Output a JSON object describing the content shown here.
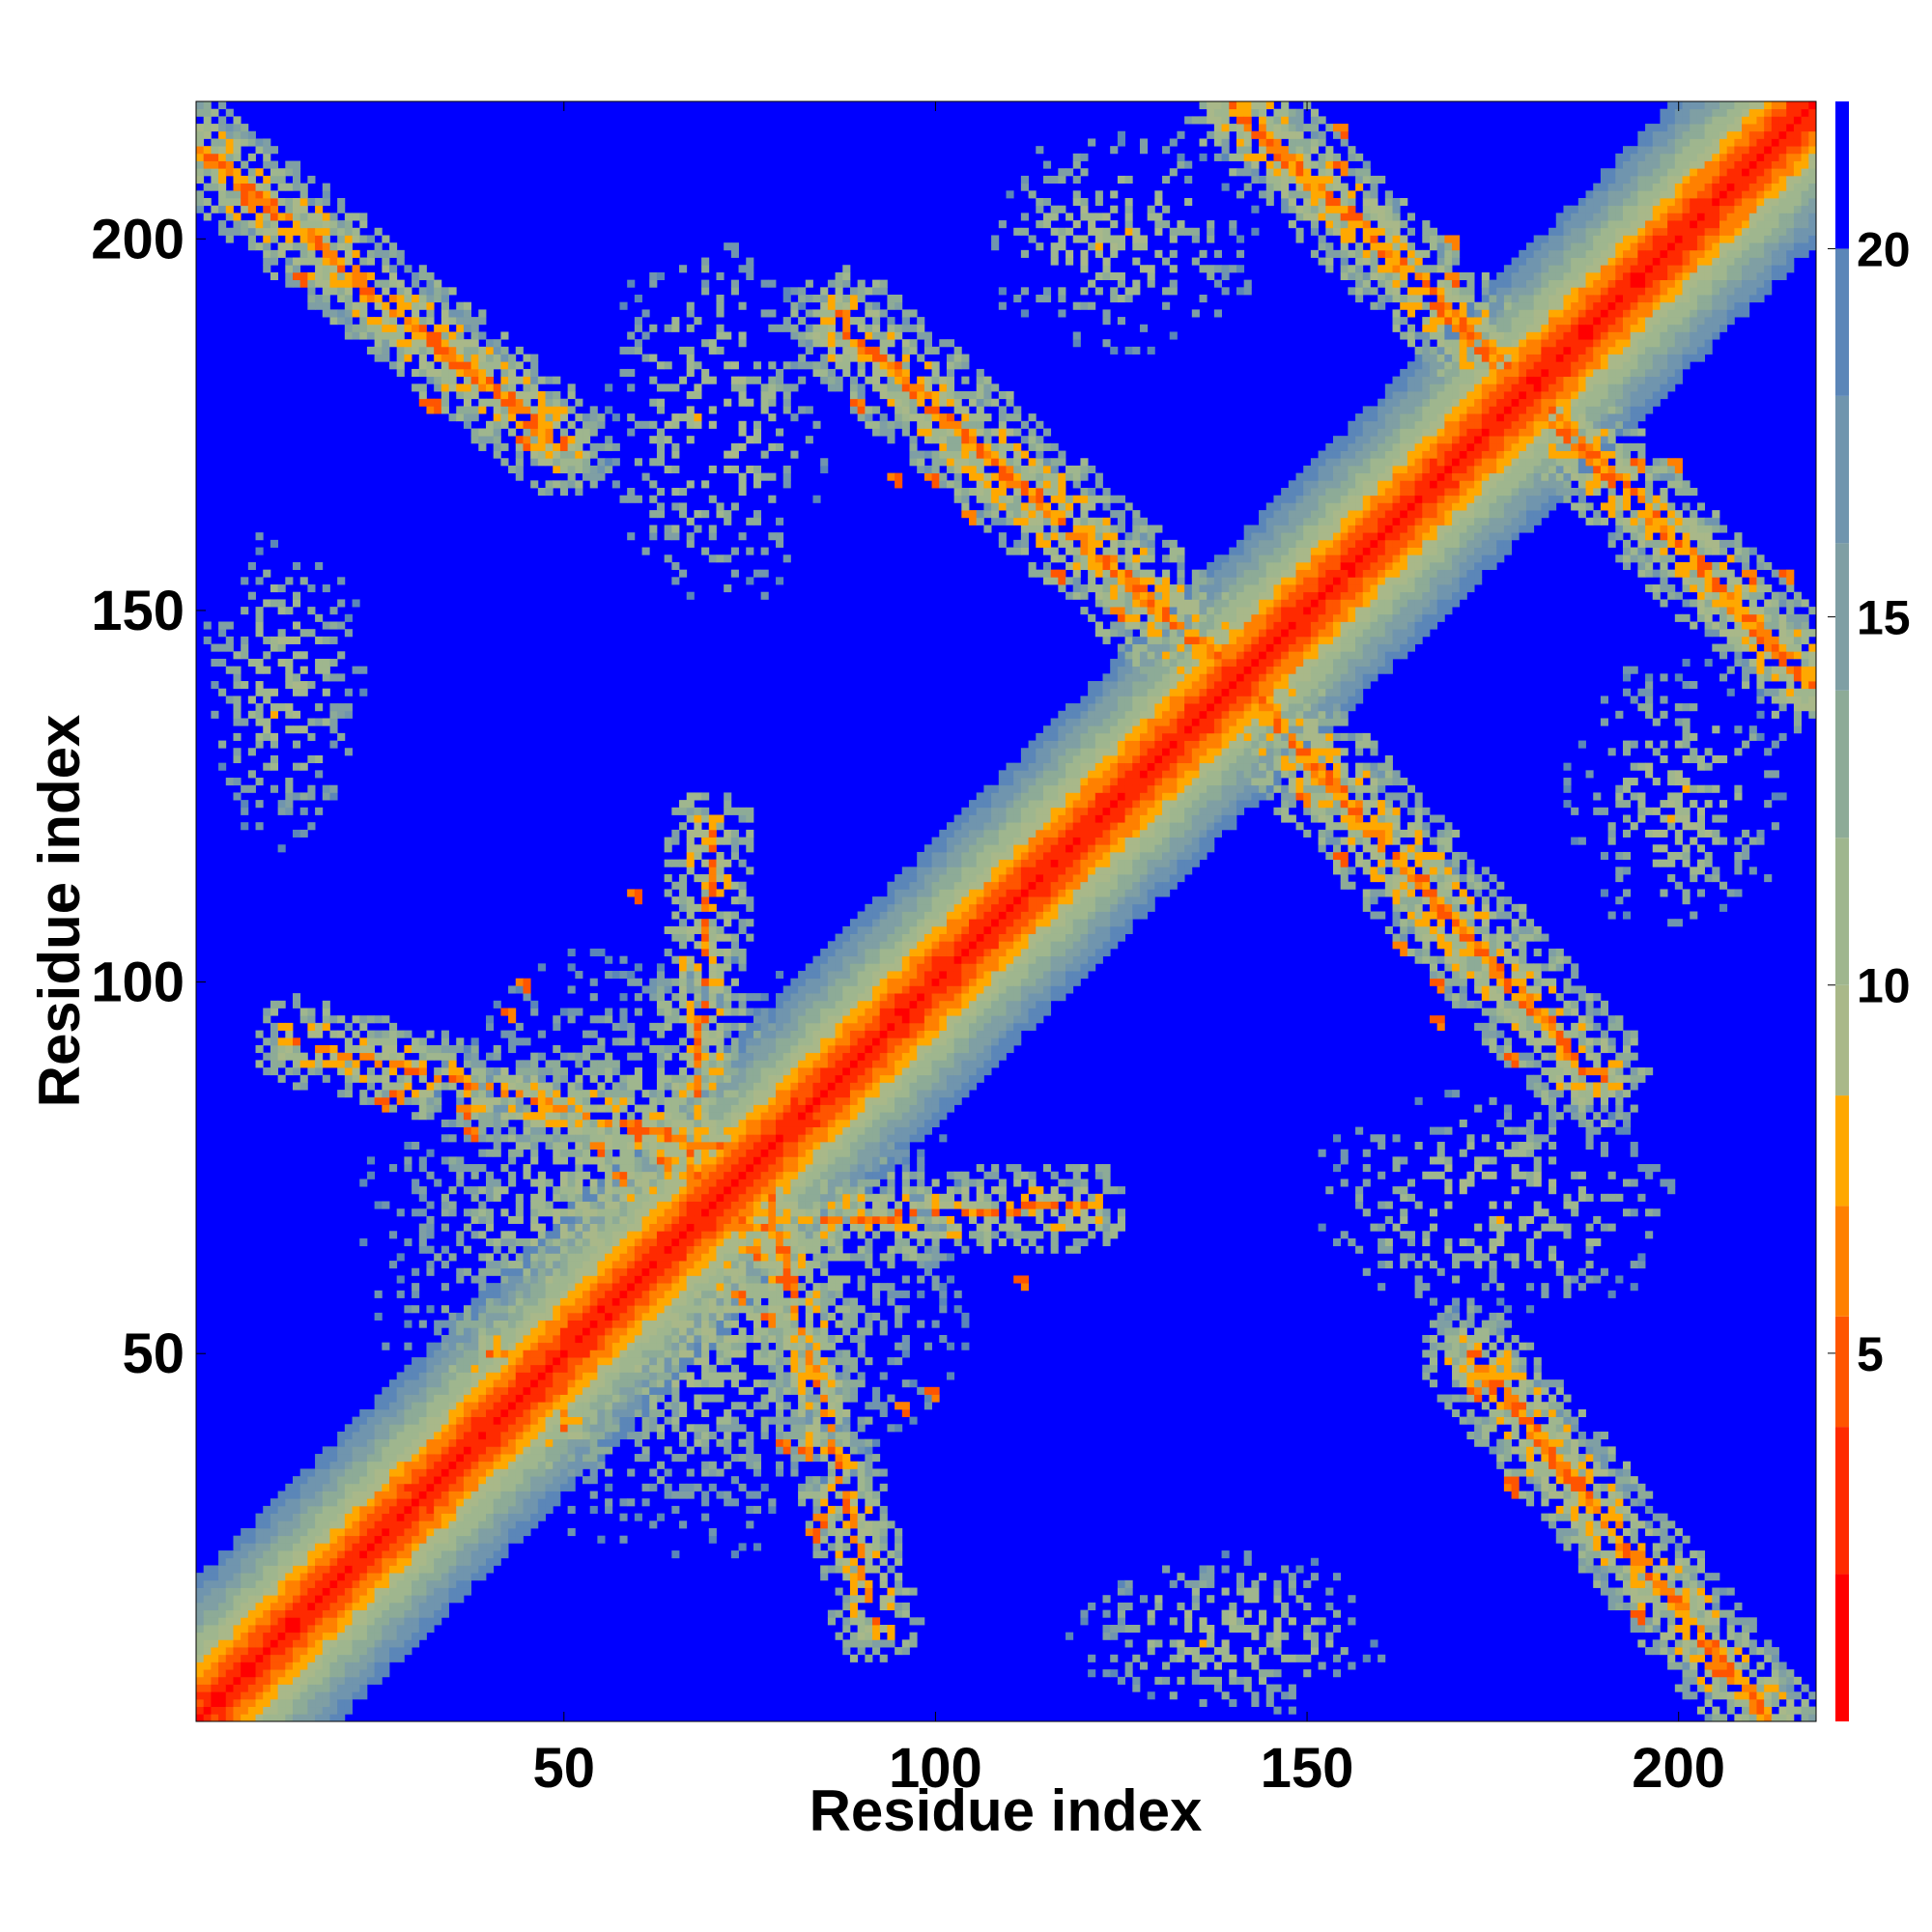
{
  "chart_data": {
    "type": "heatmap",
    "title": "",
    "xlabel": "Residue index",
    "ylabel": "Residue index",
    "xlim": [
      1,
      218
    ],
    "ylim": [
      1,
      218
    ],
    "x_ticks": [
      50,
      100,
      150,
      200
    ],
    "y_ticks": [
      50,
      100,
      150,
      200
    ],
    "grid": false,
    "colorbar": {
      "ticks": [
        5,
        10,
        15,
        20
      ],
      "range": [
        0,
        22
      ],
      "levels": [
        {
          "upper": 2,
          "color": "#ff0000"
        },
        {
          "upper": 4,
          "color": "#ff2a00"
        },
        {
          "upper": 5.5,
          "color": "#ff5500"
        },
        {
          "upper": 7,
          "color": "#ff8000"
        },
        {
          "upper": 8.5,
          "color": "#ffa800"
        },
        {
          "upper": 10,
          "color": "#a9b889"
        },
        {
          "upper": 12,
          "color": "#9fb68e"
        },
        {
          "upper": 14,
          "color": "#8dab97"
        },
        {
          "upper": 16,
          "color": "#7f9fa4"
        },
        {
          "upper": 18,
          "color": "#7095ae"
        },
        {
          "upper": 20,
          "color": "#5b86b8"
        },
        {
          "upper": 22,
          "color": "#0000ff"
        }
      ]
    },
    "background_color": "#0000ff",
    "contact_bands": [
      {
        "name": "main-diagonal",
        "x0": 1,
        "y0": 1,
        "x1": 218,
        "y1": 218,
        "core": 6.5,
        "mid": 11,
        "outer": 15,
        "dense": 1
      },
      {
        "name": "anti-diagonal-upper",
        "x0": 1,
        "y0": 212,
        "x1": 50,
        "y1": 172,
        "core": 1,
        "mid": 4,
        "outer": 7,
        "dense": 0.55
      },
      {
        "name": "anti-diagonal-center",
        "x0": 88,
        "y0": 188,
        "x1": 205,
        "y1": 83,
        "core": 1,
        "mid": 4.5,
        "outer": 8,
        "dense": 0.55
      },
      {
        "name": "anti-diagonal-top-right",
        "x0": 140,
        "y0": 218,
        "x1": 218,
        "y1": 143,
        "core": 1,
        "mid": 4,
        "outer": 7,
        "dense": 0.55
      },
      {
        "name": "anti-diagonal-bottom-right",
        "x0": 162,
        "y0": 48,
        "x1": 214,
        "y1": 1,
        "core": 1,
        "mid": 4,
        "outer": 7,
        "dense": 0.55
      },
      {
        "name": "cross-band-a",
        "x0": 14,
        "y0": 92,
        "x1": 110,
        "y1": 68,
        "core": 0.5,
        "mid": 3,
        "outer": 6,
        "dense": 0.45
      },
      {
        "name": "cross-band-b",
        "x0": 70,
        "y0": 120,
        "x1": 64,
        "y1": 20,
        "core": 0.5,
        "mid": 3,
        "outer": 6,
        "dense": 0.4
      },
      {
        "name": "cross-band-c",
        "x0": 40,
        "y0": 50,
        "x1": 100,
        "y1": 46,
        "core": 0.5,
        "mid": 3,
        "outer": 6,
        "dense": 0.4
      }
    ],
    "contact_blobs": [
      {
        "name": "cluster-low-left",
        "cx": 62,
        "cy": 66,
        "rx": 40,
        "ry": 40,
        "dense": 0.5
      },
      {
        "name": "cluster-top-mid",
        "cx": 70,
        "cy": 175,
        "rx": 16,
        "ry": 28,
        "dense": 0.3
      },
      {
        "name": "cluster-left-mid",
        "cx": 12,
        "cy": 140,
        "rx": 12,
        "ry": 22,
        "dense": 0.35
      },
      {
        "name": "cluster-top-sparse",
        "cx": 125,
        "cy": 200,
        "rx": 20,
        "ry": 16,
        "dense": 0.3
      },
      {
        "name": "cluster-right-upper",
        "cx": 205,
        "cy": 110,
        "rx": 16,
        "ry": 22,
        "dense": 0.35
      },
      {
        "name": "cluster-right-low",
        "cx": 180,
        "cy": 62,
        "rx": 20,
        "ry": 12,
        "dense": 0.3
      },
      {
        "name": "cluster-bottom-mid",
        "cx": 135,
        "cy": 10,
        "rx": 26,
        "ry": 10,
        "dense": 0.3
      },
      {
        "name": "cluster-bottom-left",
        "cx": 60,
        "cy": 15,
        "rx": 6,
        "ry": 10,
        "dense": 0.3
      }
    ],
    "hot_spots": [
      {
        "x": 72,
        "y": 70
      },
      {
        "x": 68,
        "y": 74
      },
      {
        "x": 76,
        "y": 64
      },
      {
        "x": 58,
        "y": 74
      },
      {
        "x": 55,
        "y": 78
      },
      {
        "x": 80,
        "y": 60
      },
      {
        "x": 74,
        "y": 58
      },
      {
        "x": 26,
        "y": 84
      },
      {
        "x": 38,
        "y": 80
      },
      {
        "x": 45,
        "y": 100
      },
      {
        "x": 60,
        "y": 112
      },
      {
        "x": 83,
        "y": 37
      },
      {
        "x": 85,
        "y": 28
      },
      {
        "x": 96,
        "y": 43
      },
      {
        "x": 33,
        "y": 178
      },
      {
        "x": 45,
        "y": 173
      },
      {
        "x": 95,
        "y": 168
      },
      {
        "x": 105,
        "y": 163
      },
      {
        "x": 125,
        "y": 150
      },
      {
        "x": 133,
        "y": 138
      },
      {
        "x": 155,
        "y": 117
      },
      {
        "x": 168,
        "y": 100
      },
      {
        "x": 178,
        "y": 90
      },
      {
        "x": 190,
        "y": 88
      },
      {
        "x": 178,
        "y": 32
      },
      {
        "x": 195,
        "y": 15
      },
      {
        "x": 205,
        "y": 8
      },
      {
        "x": 155,
        "y": 215
      },
      {
        "x": 170,
        "y": 200
      },
      {
        "x": 195,
        "y": 170
      },
      {
        "x": 210,
        "y": 155
      },
      {
        "x": 10,
        "y": 205
      }
    ]
  }
}
